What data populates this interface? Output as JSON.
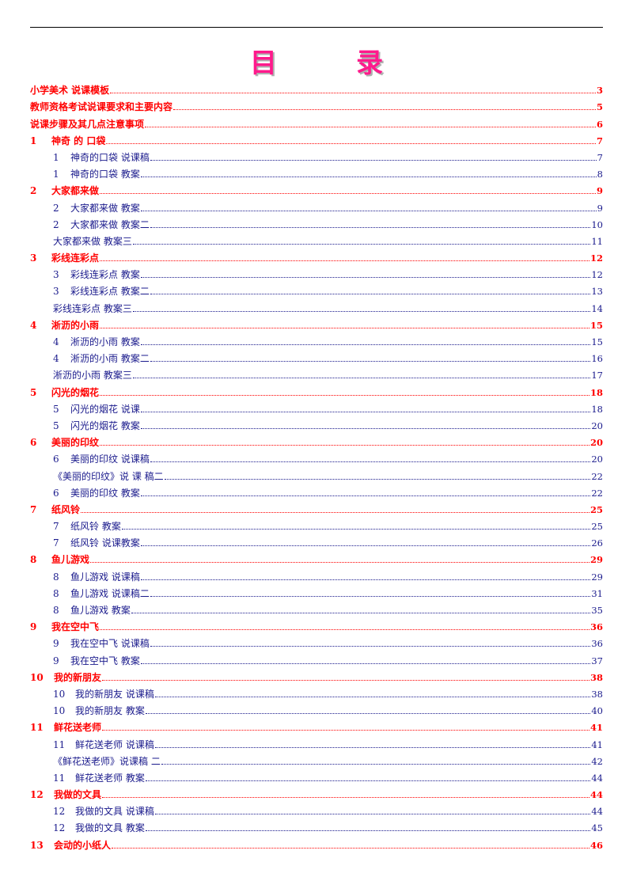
{
  "document": {
    "title": "目 录"
  },
  "toc": [
    {
      "level": 1,
      "num": "",
      "text": "小学美术 说课模板",
      "page": "3"
    },
    {
      "level": 1,
      "num": "",
      "text": "教师资格考试说课要求和主要内容",
      "page": "5"
    },
    {
      "level": 1,
      "num": "",
      "text": "说课步骤及其几点注意事项",
      "page": "6"
    },
    {
      "level": 1,
      "num": "1",
      "text": "神奇 的 口袋",
      "page": "7"
    },
    {
      "level": 2,
      "num": "1",
      "text": "神奇的口袋 说课稿",
      "page": "7"
    },
    {
      "level": 2,
      "num": "1",
      "text": "神奇的口袋 教案",
      "page": "8"
    },
    {
      "level": 1,
      "num": "2",
      "text": "大家都来做",
      "page": "9"
    },
    {
      "level": 2,
      "num": "2",
      "text": "大家都来做 教案",
      "page": "9"
    },
    {
      "level": 2,
      "num": "2",
      "text": "大家都来做 教案二",
      "page": "10"
    },
    {
      "level": 3,
      "num": "",
      "text": "大家都来做 教案三",
      "page": "11"
    },
    {
      "level": 1,
      "num": "3",
      "text": "彩线连彩点",
      "page": "12"
    },
    {
      "level": 2,
      "num": "3",
      "text": "彩线连彩点 教案",
      "page": "12"
    },
    {
      "level": 2,
      "num": "3",
      "text": "彩线连彩点 教案二",
      "page": "13"
    },
    {
      "level": 3,
      "num": "",
      "text": "彩线连彩点 教案三",
      "page": "14"
    },
    {
      "level": 1,
      "num": "4",
      "text": "淅沥的小雨",
      "page": "15"
    },
    {
      "level": 2,
      "num": "4",
      "text": "淅沥的小雨 教案",
      "page": "15"
    },
    {
      "level": 2,
      "num": "4",
      "text": "淅沥的小雨 教案二",
      "page": "16"
    },
    {
      "level": 3,
      "num": "",
      "text": "淅沥的小雨 教案三",
      "page": "17"
    },
    {
      "level": 1,
      "num": "5",
      "text": "闪光的烟花",
      "page": "18"
    },
    {
      "level": 2,
      "num": "5",
      "text": "闪光的烟花 说课",
      "page": "18"
    },
    {
      "level": 2,
      "num": "5",
      "text": "闪光的烟花 教案",
      "page": "20"
    },
    {
      "level": 1,
      "num": "6",
      "text": "美丽的印纹",
      "page": "20"
    },
    {
      "level": 2,
      "num": "6",
      "text": "美丽的印纹 说课稿",
      "page": "20"
    },
    {
      "level": 3,
      "num": "",
      "text": "《美丽的印纹》说 课 稿二",
      "page": "22"
    },
    {
      "level": 2,
      "num": "6",
      "text": "美丽的印纹 教案",
      "page": "22"
    },
    {
      "level": 1,
      "num": "7",
      "text": "纸风铃",
      "page": "25"
    },
    {
      "level": 2,
      "num": "7",
      "text": "纸风铃 教案",
      "page": "25"
    },
    {
      "level": 2,
      "num": "7",
      "text": "纸风铃 说课教案",
      "page": "26"
    },
    {
      "level": 1,
      "num": "8",
      "text": "鱼儿游戏",
      "page": "29"
    },
    {
      "level": 2,
      "num": "8",
      "text": "鱼儿游戏 说课稿",
      "page": "29"
    },
    {
      "level": 2,
      "num": "8",
      "text": "鱼儿游戏 说课稿二",
      "page": "31"
    },
    {
      "level": 2,
      "num": "8",
      "text": "鱼儿游戏 教案",
      "page": "35"
    },
    {
      "level": 1,
      "num": "9",
      "text": "我在空中飞",
      "page": "36"
    },
    {
      "level": 2,
      "num": "9",
      "text": "我在空中飞 说课稿",
      "page": "36"
    },
    {
      "level": 2,
      "num": "9",
      "text": "我在空中飞 教案",
      "page": "37"
    },
    {
      "level": 1,
      "num": "10",
      "text": "我的新朋友",
      "page": "38"
    },
    {
      "level": 2,
      "num": "10",
      "text": "我的新朋友 说课稿",
      "page": "38"
    },
    {
      "level": 2,
      "num": "10",
      "text": "我的新朋友 教案",
      "page": "40"
    },
    {
      "level": 1,
      "num": "11",
      "text": "鲜花送老师",
      "page": "41"
    },
    {
      "level": 2,
      "num": "11",
      "text": "鲜花送老师 说课稿",
      "page": "41"
    },
    {
      "level": 3,
      "num": "",
      "text": "《鲜花送老师》说课稿 二",
      "page": "42"
    },
    {
      "level": 2,
      "num": "11",
      "text": "鲜花送老师 教案",
      "page": "44"
    },
    {
      "level": 1,
      "num": "12",
      "text": "我做的文具",
      "page": "44"
    },
    {
      "level": 2,
      "num": "12",
      "text": "我做的文具 说课稿",
      "page": "44"
    },
    {
      "level": 2,
      "num": "12",
      "text": "我做的文具 教案",
      "page": "45"
    },
    {
      "level": 1,
      "num": "13",
      "text": "会动的小纸人",
      "page": "46"
    }
  ]
}
